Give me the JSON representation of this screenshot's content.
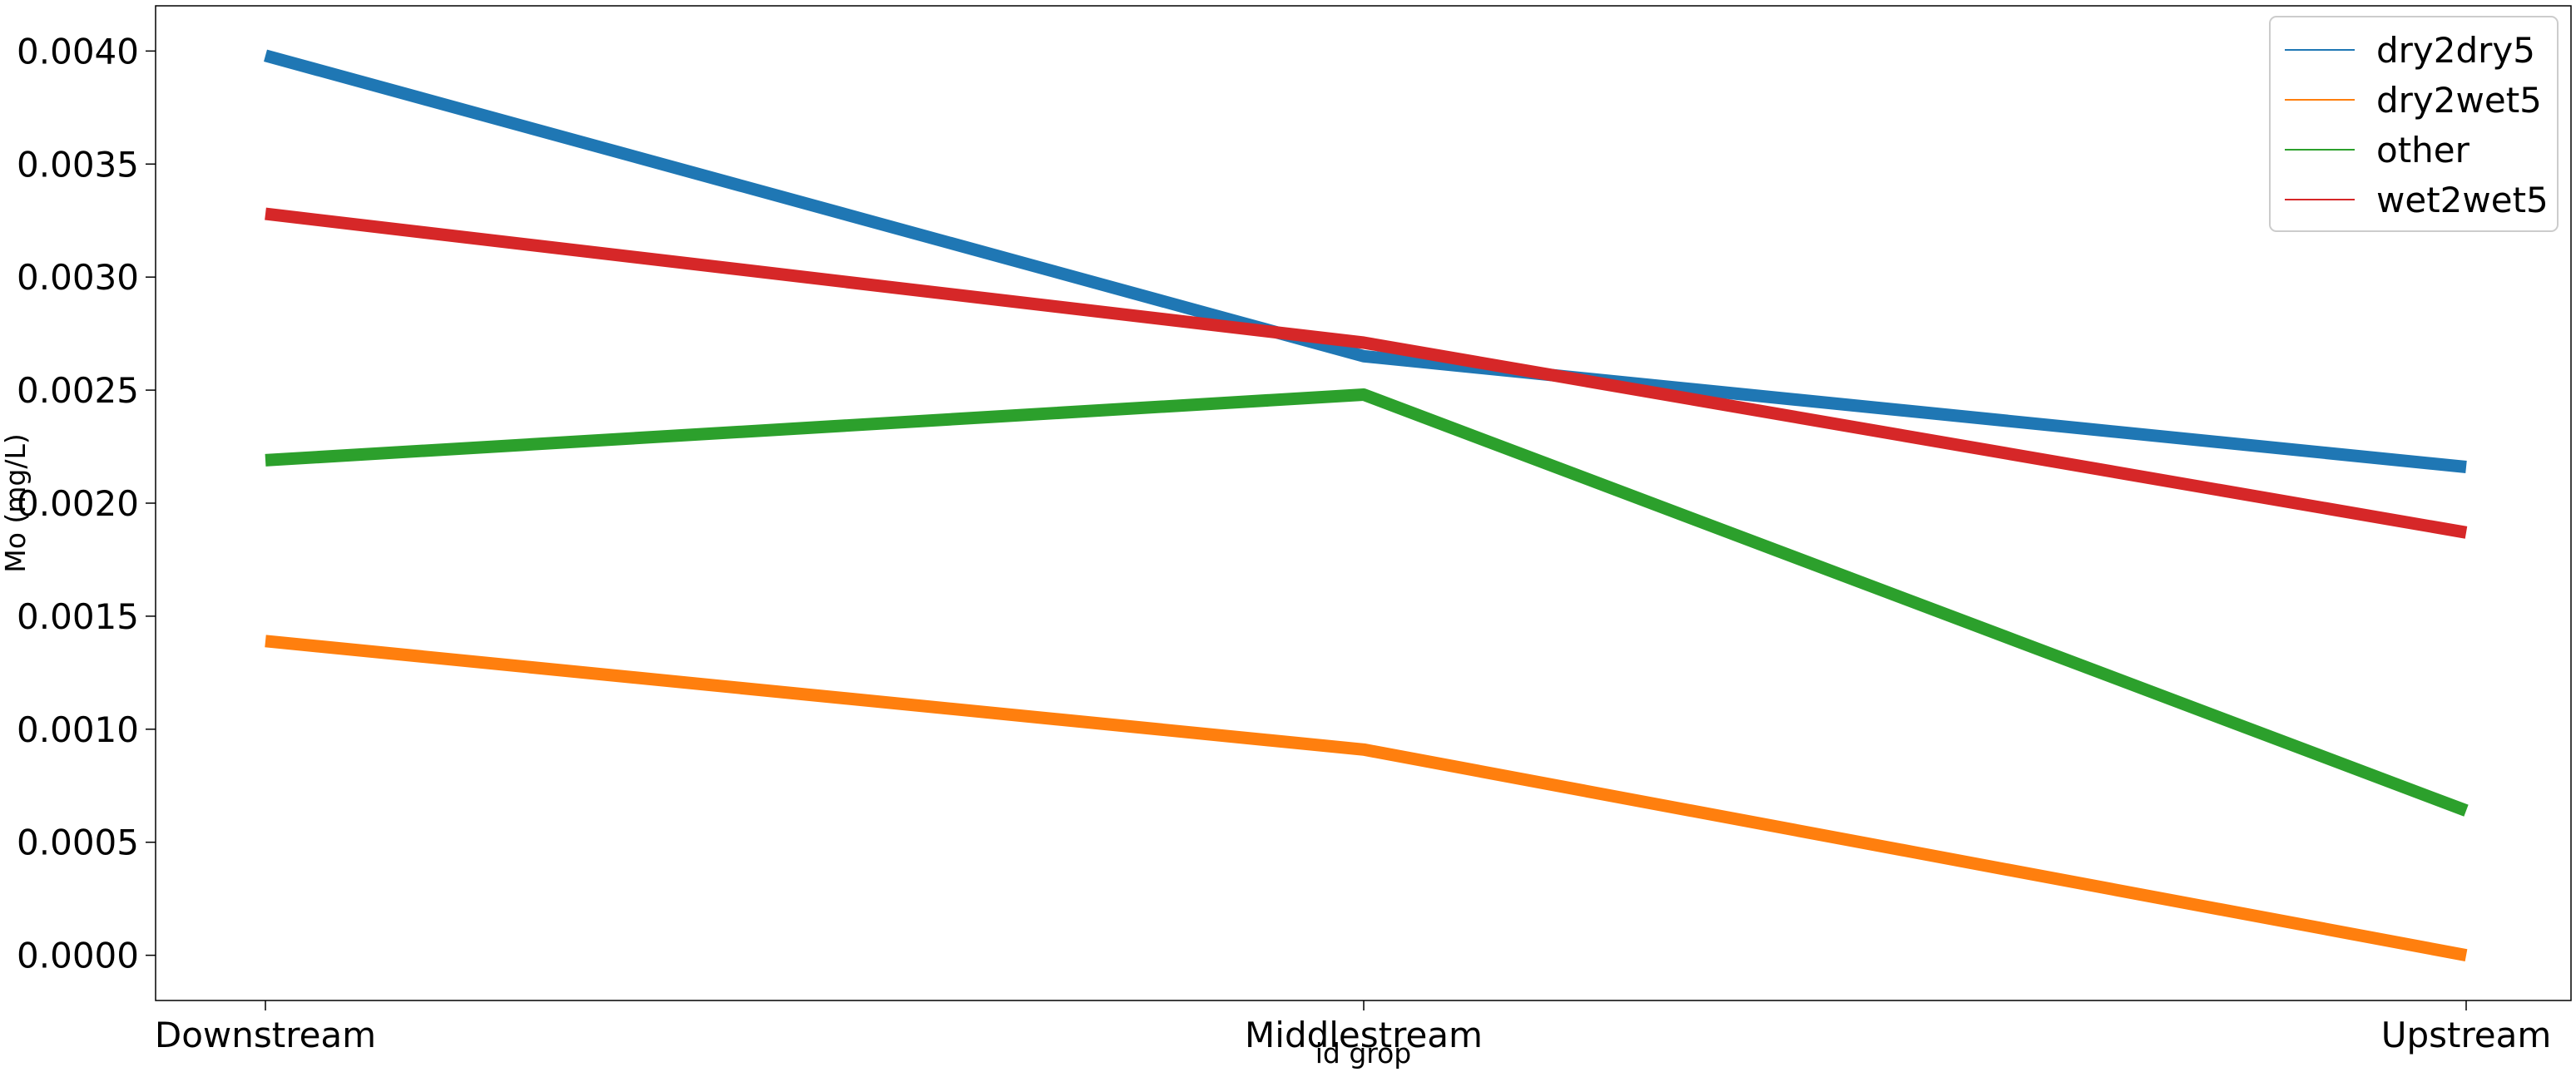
{
  "chart_data": {
    "type": "line",
    "title": "",
    "xlabel": "id grop",
    "ylabel": "Mo (mg/L)",
    "categories": [
      "Downstream",
      "Middlestream",
      "Upstream"
    ],
    "ylim": [
      -0.0002,
      0.0042
    ],
    "yticks": [
      0.0,
      0.0005,
      0.001,
      0.0015,
      0.002,
      0.0025,
      0.003,
      0.0035,
      0.004
    ],
    "ytick_labels": [
      "0.0000",
      "0.0005",
      "0.0010",
      "0.0015",
      "0.0020",
      "0.0025",
      "0.0030",
      "0.0035",
      "0.0040"
    ],
    "grid": false,
    "legend_position": "top-right",
    "series": [
      {
        "name": "dry2dry5",
        "color": "#1f77b4",
        "values": [
          0.00398,
          0.00265,
          0.00216
        ]
      },
      {
        "name": "dry2wet5",
        "color": "#ff7f0e",
        "values": [
          0.00139,
          0.00091,
          0.0
        ]
      },
      {
        "name": "other",
        "color": "#2ca02c",
        "values": [
          0.00219,
          0.00248,
          0.00064
        ]
      },
      {
        "name": "wet2wet5",
        "color": "#d62728",
        "values": [
          0.00328,
          0.00271,
          0.00187
        ]
      }
    ]
  }
}
